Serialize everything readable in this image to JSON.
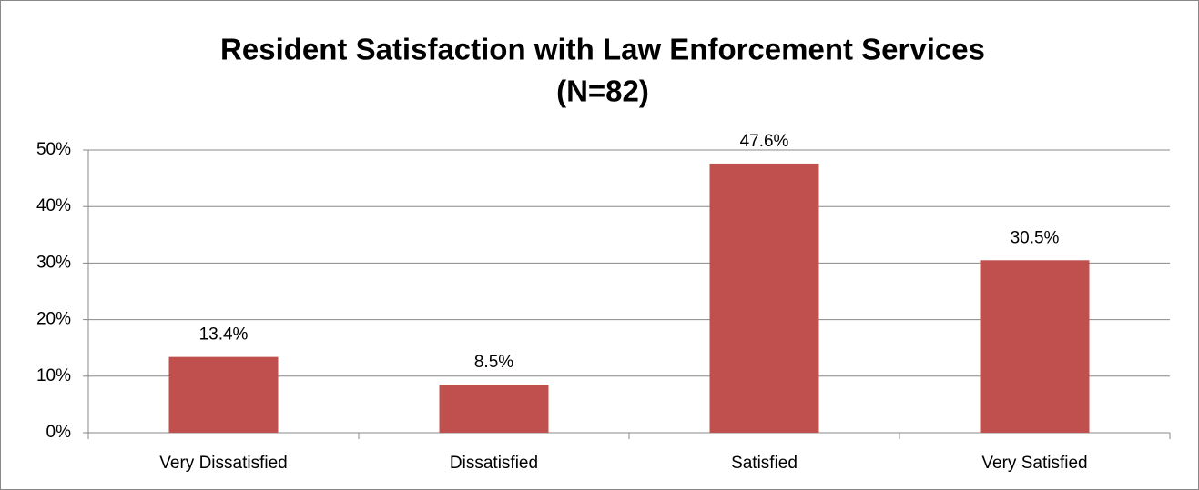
{
  "chart_data": {
    "type": "bar",
    "title": [
      "Resident Satisfaction with Law Enforcement Services",
      "(N=82)"
    ],
    "categories": [
      "Very Dissatisfied",
      "Dissatisfied",
      "Satisfied",
      "Very Satisfied"
    ],
    "values": [
      13.4,
      8.5,
      47.6,
      30.5
    ],
    "value_labels": [
      "13.4%",
      "8.5%",
      "47.6%",
      "30.5%"
    ],
    "color": "#c0504d",
    "ylim": [
      0,
      50
    ],
    "yticks": [
      {
        "value": 0,
        "label": "0%"
      },
      {
        "value": 10,
        "label": "10%"
      },
      {
        "value": 20,
        "label": "20%"
      },
      {
        "value": 30,
        "label": "30%"
      },
      {
        "value": 40,
        "label": "40%"
      },
      {
        "value": 50,
        "label": "50%"
      }
    ],
    "grid": true
  }
}
